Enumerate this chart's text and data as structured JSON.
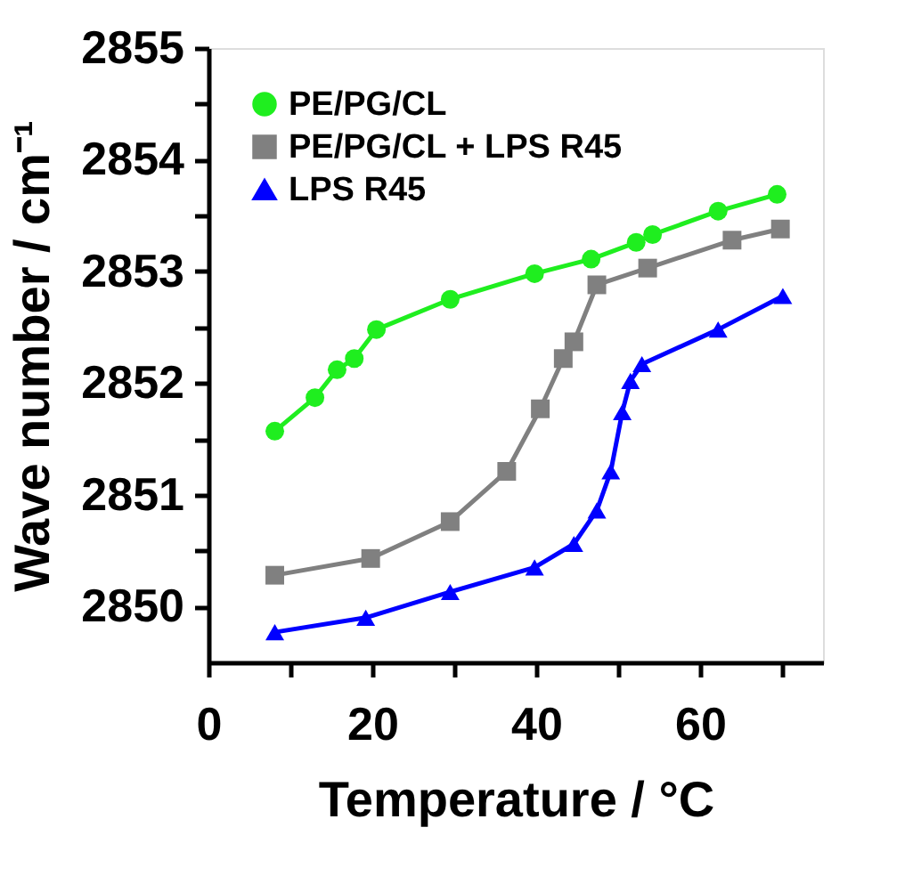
{
  "chart_data": {
    "type": "line",
    "xlabel": "Temperature / °C",
    "ylabel": "Wave number / cm⁻¹",
    "xlim": [
      0,
      75
    ],
    "xticks": [
      0,
      {
        "value": 10,
        "label": null
      },
      20,
      {
        "value": 30,
        "label": null
      },
      40,
      {
        "value": 50,
        "label": null
      },
      60,
      {
        "value": 70,
        "label": null
      }
    ],
    "ylim": [
      2849.5,
      2855
    ],
    "yticks": [
      2850,
      {
        "value": 2850.5,
        "label": null
      },
      2851,
      {
        "value": 2851.5,
        "label": null
      },
      2852,
      {
        "value": 2852.5,
        "label": null
      },
      2853,
      {
        "value": 2853.5,
        "label": null
      },
      2854,
      {
        "value": 2854.5,
        "label": null
      },
      2855
    ],
    "grid": false,
    "legend": "top left",
    "line_style": "solid",
    "series": [
      {
        "name": "PE/PG/CL",
        "color": "#1fee1f",
        "marker": "circle",
        "x": [
          8.1,
          13,
          15.7,
          17.8,
          20.5,
          29.5,
          39.8,
          46.7,
          52.2,
          54.2,
          62.2,
          69.4
        ],
        "values": [
          2851.57,
          2851.87,
          2852.12,
          2852.22,
          2852.48,
          2852.75,
          2852.98,
          2853.11,
          2853.26,
          2853.33,
          2853.54,
          2853.69
        ]
      },
      {
        "name": "PE/PG/CL + LPS R45",
        "color": "#808080",
        "marker": "square",
        "x": [
          8.1,
          19.8,
          29.5,
          36.4,
          40.5,
          43.3,
          44.6,
          47.4,
          53.6,
          63.9,
          69.8
        ],
        "values": [
          2850.28,
          2850.43,
          2850.76,
          2851.21,
          2851.77,
          2852.22,
          2852.37,
          2852.88,
          2853.03,
          2853.28,
          2853.38
        ]
      },
      {
        "name": "LPS R45",
        "color": "#0000ff",
        "marker": "triangle",
        "x": [
          8.1,
          19.2,
          29.5,
          39.8,
          44.6,
          47.4,
          49.1,
          50.5,
          51.5,
          52.9,
          62.2,
          70.1
        ],
        "values": [
          2849.77,
          2849.9,
          2850.13,
          2850.35,
          2850.56,
          2850.86,
          2851.21,
          2851.74,
          2852.02,
          2852.17,
          2852.48,
          2852.78
        ]
      }
    ]
  }
}
